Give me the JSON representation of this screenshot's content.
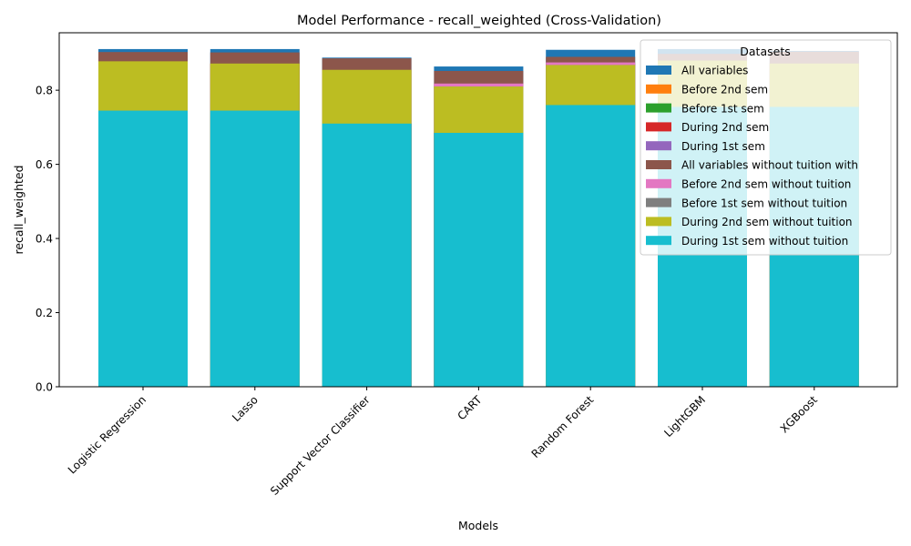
{
  "chart_data": {
    "type": "bar",
    "stacked": false,
    "overlay": true,
    "title": "Model Performance - recall_weighted (Cross-Validation)",
    "xlabel": "Models",
    "ylabel": "recall_weighted",
    "ylim": [
      0,
      0.955
    ],
    "yticks": [
      0.0,
      0.2,
      0.4,
      0.6,
      0.8
    ],
    "ytick_labels": [
      "0.0",
      "0.2",
      "0.4",
      "0.6",
      "0.8"
    ],
    "grid": false,
    "legend": {
      "title": "Datasets",
      "placement": "top-right"
    },
    "categories": [
      "Logistic Regression",
      "Lasso",
      "Support Vector Classifier",
      "CART",
      "Random Forest",
      "LightGBM",
      "XGBoost"
    ],
    "series": [
      {
        "name": "All variables",
        "color": "#1f77b4",
        "values": [
          0.911,
          0.911,
          0.888,
          0.864,
          0.909,
          0.911,
          0.906
        ]
      },
      {
        "name": "Before 2nd sem",
        "color": "#ff7f0e",
        "values": [
          0.745,
          0.745,
          0.71,
          0.685,
          0.76,
          0.755,
          0.755
        ]
      },
      {
        "name": "Before 1st sem",
        "color": "#2ca02c",
        "values": [
          0.745,
          0.745,
          0.71,
          0.685,
          0.76,
          0.755,
          0.755
        ]
      },
      {
        "name": "During 2nd sem",
        "color": "#d62728",
        "values": [
          0.878,
          0.872,
          0.855,
          0.818,
          0.87,
          0.88,
          0.872
        ]
      },
      {
        "name": "During 1st sem",
        "color": "#9467bd",
        "values": [
          0.745,
          0.745,
          0.71,
          0.685,
          0.76,
          0.755,
          0.755
        ]
      },
      {
        "name": "All variables without tuition with",
        "color": "#8c564b",
        "values": [
          0.903,
          0.902,
          0.886,
          0.852,
          0.89,
          0.898,
          0.904
        ]
      },
      {
        "name": "Before 2nd sem without tuition",
        "color": "#e377c2",
        "values": [
          0.745,
          0.745,
          0.71,
          0.818,
          0.875,
          0.755,
          0.755
        ]
      },
      {
        "name": "Before 1st sem without tuition",
        "color": "#7f7f7f",
        "values": [
          0.745,
          0.745,
          0.71,
          0.81,
          0.868,
          0.755,
          0.755
        ]
      },
      {
        "name": "During 2nd sem without tuition",
        "color": "#bcbd22",
        "values": [
          0.878,
          0.872,
          0.855,
          0.81,
          0.868,
          0.88,
          0.872
        ]
      },
      {
        "name": "During 1st sem without tuition",
        "color": "#17becf",
        "values": [
          0.745,
          0.745,
          0.71,
          0.685,
          0.76,
          0.755,
          0.755
        ]
      }
    ]
  }
}
